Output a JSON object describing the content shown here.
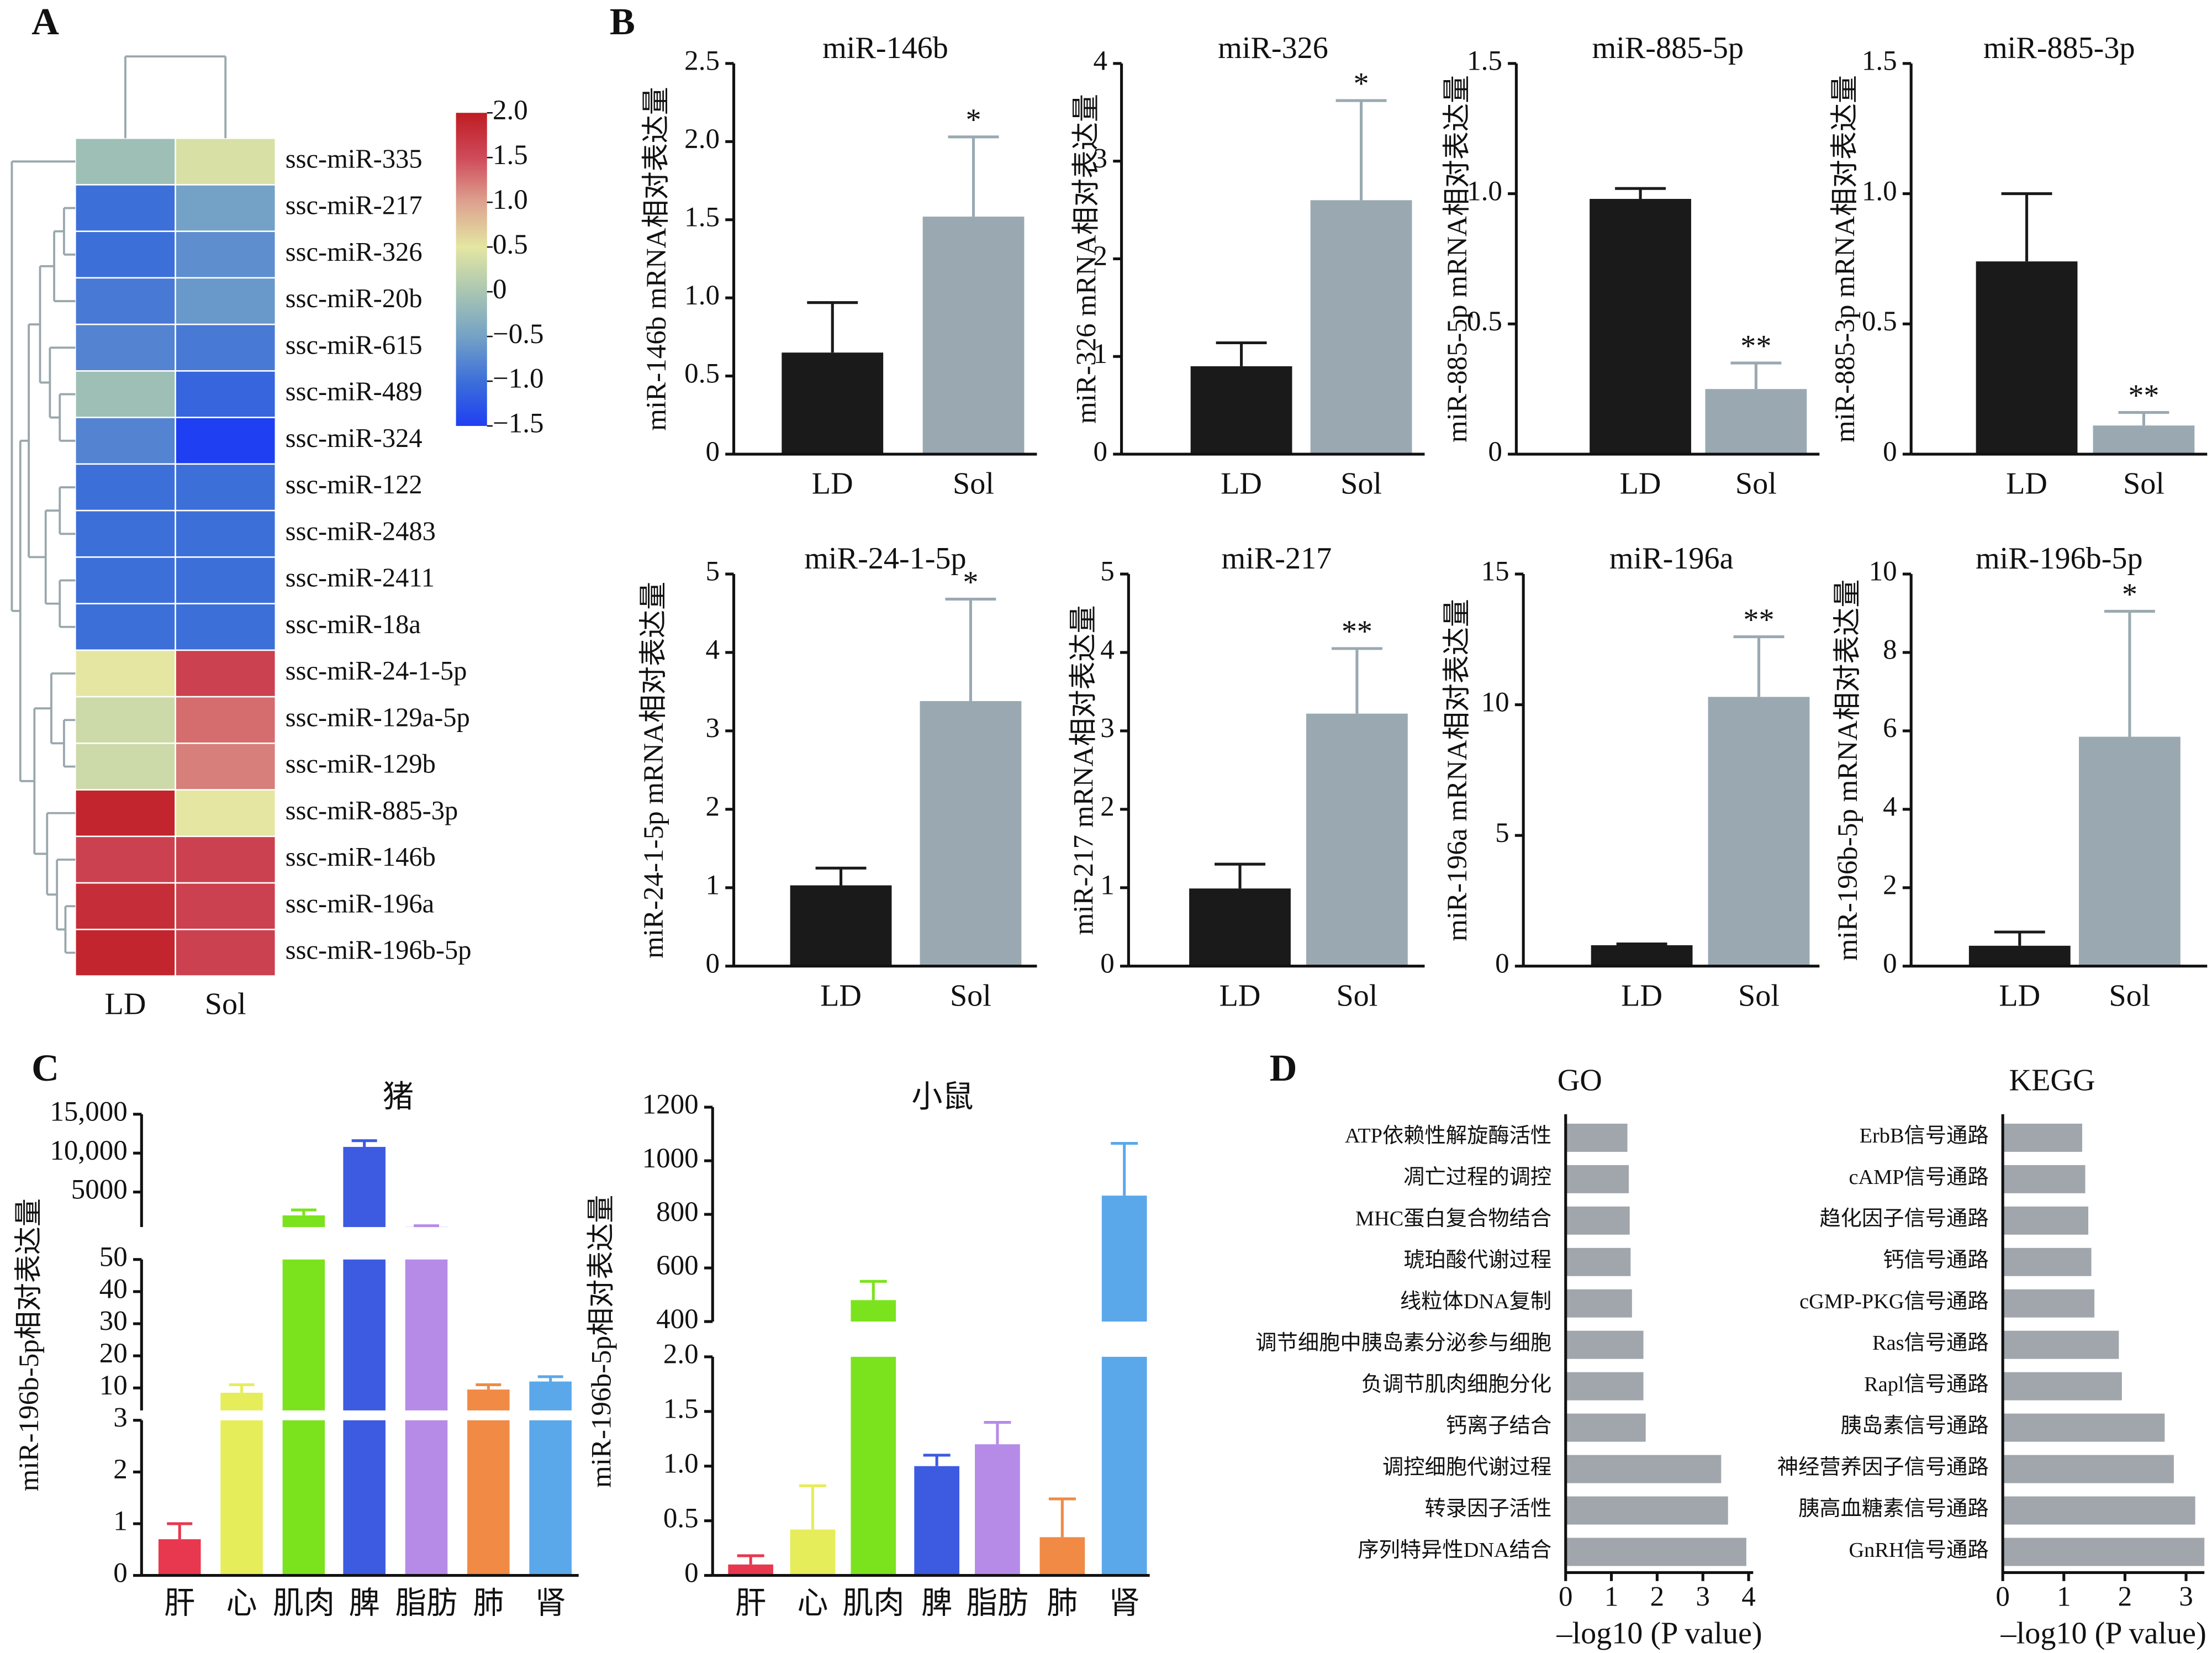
{
  "chart_data": [
    {
      "type": "heatmap",
      "panel": "A",
      "columns": [
        "LD",
        "Sol"
      ],
      "rows": [
        "ssc-miR-335",
        "ssc-miR-217",
        "ssc-miR-326",
        "ssc-miR-20b",
        "ssc-miR-615",
        "ssc-miR-489",
        "ssc-miR-324",
        "ssc-miR-122",
        "ssc-miR-2483",
        "ssc-miR-2411",
        "ssc-miR-18a",
        "ssc-miR-24-1-5p",
        "ssc-miR-129a-5p",
        "ssc-miR-129b",
        "ssc-miR-885-3p",
        "ssc-miR-146b",
        "ssc-miR-196a",
        "ssc-miR-196b-5p"
      ],
      "values": [
        [
          -0.1,
          0.4
        ],
        [
          -1.0,
          -0.5
        ],
        [
          -1.0,
          -0.7
        ],
        [
          -0.9,
          -0.6
        ],
        [
          -0.8,
          -0.9
        ],
        [
          -0.1,
          -1.1
        ],
        [
          -0.8,
          -1.5
        ],
        [
          -1.0,
          -1.0
        ],
        [
          -1.0,
          -1.0
        ],
        [
          -1.0,
          -1.0
        ],
        [
          -1.0,
          -1.0
        ],
        [
          0.5,
          1.6
        ],
        [
          0.3,
          1.3
        ],
        [
          0.3,
          1.2
        ],
        [
          1.9,
          0.5
        ],
        [
          1.6,
          1.6
        ],
        [
          1.8,
          1.6
        ],
        [
          1.9,
          1.6
        ]
      ],
      "zlim": [
        -1.5,
        2
      ],
      "zticks": [
        {
          "value": 2,
          "label": "2.0"
        },
        1.5,
        {
          "value": 1,
          "label": "1.0"
        },
        0.5,
        0,
        {
          "value": -0.5,
          "label": "−0.5"
        },
        {
          "value": -1,
          "label": "−1.0"
        },
        {
          "value": -1.5,
          "label": "−1.5"
        }
      ],
      "colormap": [
        "#1f3ff2",
        "#3d6fd9",
        "#74a2c6",
        "#a9c6b2",
        "#e4e6a2",
        "#dda28f",
        "#cf4a5a",
        "#bf1c22"
      ]
    },
    {
      "type": "bar",
      "panel": "B",
      "title": "miR-146b",
      "ylabel": "miR-146b mRNA相对表达量",
      "categories": [
        "LD",
        "Sol"
      ],
      "values": [
        0.65,
        1.52
      ],
      "errors": [
        0.32,
        0.51
      ],
      "significance": [
        null,
        "*"
      ],
      "colors": [
        "#1a1a1a",
        "#9aa9b1"
      ],
      "ylim": [
        0,
        2.5
      ],
      "yticks": [
        0,
        0.5,
        {
          "value": 1,
          "label": "1.0"
        },
        1.5,
        {
          "value": 2,
          "label": "2.0"
        },
        2.5
      ]
    },
    {
      "type": "bar",
      "title": "miR-326",
      "ylabel": "miR-326 mRNA相对表达量",
      "categories": [
        "LD",
        "Sol"
      ],
      "values": [
        0.9,
        2.6
      ],
      "errors": [
        0.24,
        1.02
      ],
      "significance": [
        null,
        "*"
      ],
      "colors": [
        "#1a1a1a",
        "#9aa9b1"
      ],
      "ylim": [
        0,
        4
      ],
      "yticks": [
        0,
        1,
        2,
        3,
        4
      ]
    },
    {
      "type": "bar",
      "title": "miR-885-5p",
      "ylabel": "miR-885-5p mRNA相对表达量",
      "categories": [
        "LD",
        "Sol"
      ],
      "values": [
        0.98,
        0.25
      ],
      "errors": [
        0.04,
        0.1
      ],
      "significance": [
        null,
        "**"
      ],
      "colors": [
        "#1a1a1a",
        "#9aa9b1"
      ],
      "ylim": [
        0,
        1.5
      ],
      "yticks": [
        0,
        0.5,
        {
          "value": 1,
          "label": "1.0"
        },
        1.5
      ]
    },
    {
      "type": "bar",
      "title": "miR-885-3p",
      "ylabel": "miR-885-3p mRNA相对表达量",
      "categories": [
        "LD",
        "Sol"
      ],
      "values": [
        0.74,
        0.11
      ],
      "errors": [
        0.26,
        0.05
      ],
      "significance": [
        null,
        "**"
      ],
      "colors": [
        "#1a1a1a",
        "#9aa9b1"
      ],
      "ylim": [
        0,
        1.5
      ],
      "yticks": [
        0,
        0.5,
        {
          "value": 1,
          "label": "1.0"
        },
        1.5
      ]
    },
    {
      "type": "bar",
      "title": "miR-24-1-5p",
      "ylabel": "miR-24-1-5p mRNA相对表达量",
      "categories": [
        "LD",
        "Sol"
      ],
      "values": [
        1.03,
        3.38
      ],
      "errors": [
        0.22,
        1.3
      ],
      "significance": [
        null,
        "*"
      ],
      "colors": [
        "#1a1a1a",
        "#9aa9b1"
      ],
      "ylim": [
        0,
        5
      ],
      "yticks": [
        0,
        1,
        2,
        3,
        4,
        5
      ]
    },
    {
      "type": "bar",
      "title": "miR-217",
      "ylabel": "miR-217 mRNA相对表达量",
      "categories": [
        "LD",
        "Sol"
      ],
      "values": [
        0.99,
        3.22
      ],
      "errors": [
        0.31,
        0.83
      ],
      "significance": [
        null,
        "**"
      ],
      "colors": [
        "#1a1a1a",
        "#9aa9b1"
      ],
      "ylim": [
        0,
        5
      ],
      "yticks": [
        0,
        1,
        2,
        3,
        4,
        5
      ]
    },
    {
      "type": "bar",
      "title": "miR-196a",
      "ylabel": "miR-196a mRNA相对表达量",
      "categories": [
        "LD",
        "Sol"
      ],
      "values": [
        0.8,
        10.3
      ],
      "errors": [
        0.05,
        2.3
      ],
      "significance": [
        null,
        "**"
      ],
      "colors": [
        "#1a1a1a",
        "#9aa9b1"
      ],
      "ylim": [
        0,
        15
      ],
      "yticks": [
        0,
        5,
        10,
        15
      ]
    },
    {
      "type": "bar",
      "title": "miR-196b-5p",
      "ylabel": "miR-196b-5p mRNA相对表达量",
      "categories": [
        "LD",
        "Sol"
      ],
      "values": [
        0.52,
        5.85
      ],
      "errors": [
        0.35,
        3.2
      ],
      "significance": [
        null,
        "*"
      ],
      "colors": [
        "#1a1a1a",
        "#9aa9b1"
      ],
      "ylim": [
        0,
        10
      ],
      "yticks": [
        0,
        2,
        4,
        6,
        8,
        10
      ]
    },
    {
      "type": "broken_bar",
      "panel": "C",
      "title": "猪",
      "ylabel": "miR-196b-5p相对表达量",
      "categories": [
        "肝",
        "心",
        "肌肉",
        "脾",
        "脂肪",
        "肺",
        "肾"
      ],
      "values": [
        0.7,
        8.5,
        2000,
        10800,
        520,
        9.5,
        12
      ],
      "errors": [
        0.3,
        2.5,
        700,
        800,
        150,
        1.5,
        1.5
      ],
      "colors": [
        "#e8384f",
        "#e6ed5a",
        "#7be31e",
        "#3d5be0",
        "#b68be8",
        "#f08a45",
        "#5aa8ea"
      ],
      "segments": [
        {
          "ylim": [
            0,
            3
          ],
          "yticks": [
            0,
            1,
            2,
            3
          ]
        },
        {
          "ylim": [
            3,
            50
          ],
          "yticks": [
            10,
            20,
            30,
            40,
            50
          ]
        },
        {
          "ylim": [
            500,
            15000
          ],
          "yticks": [
            5000,
            {
              "value": 10000,
              "label": "10,000"
            },
            {
              "value": 15000,
              "label": "15,000"
            }
          ]
        }
      ]
    },
    {
      "type": "broken_bar",
      "title": "小鼠",
      "ylabel": "miR-196b-5p相对表达量",
      "categories": [
        "肝",
        "心",
        "肌肉",
        "脾",
        "脂肪",
        "肺",
        "肾"
      ],
      "values": [
        0.1,
        0.42,
        480,
        1.0,
        1.2,
        0.35,
        870
      ],
      "errors": [
        0.08,
        0.4,
        70,
        0.1,
        0.2,
        0.35,
        195
      ],
      "colors": [
        "#e8384f",
        "#e6ed5a",
        "#7be31e",
        "#3d5be0",
        "#b68be8",
        "#f08a45",
        "#5aa8ea"
      ],
      "segments": [
        {
          "ylim": [
            0,
            2
          ],
          "yticks": [
            0,
            0.5,
            {
              "value": 1,
              "label": "1.0"
            },
            1.5,
            {
              "value": 2,
              "label": "2.0"
            }
          ]
        },
        {
          "ylim": [
            400,
            1200
          ],
          "yticks": [
            400,
            600,
            800,
            1000,
            1200
          ]
        }
      ]
    },
    {
      "type": "hbar",
      "panel": "D",
      "title": "GO",
      "xlabel": "–log10 (P value)",
      "categories": [
        "ATP依赖性解旋酶活性",
        "凋亡过程的调控",
        "MHC蛋白复合物结合",
        "琥珀酸代谢过程",
        "线粒体DNA复制",
        "调节细胞中胰岛素分泌参与细胞",
        "负调节肌肉细胞分化",
        "钙离子结合",
        "调控细胞代谢过程",
        "转录因子活性",
        "序列特异性DNA结合"
      ],
      "values": [
        1.35,
        1.38,
        1.4,
        1.42,
        1.45,
        1.7,
        1.7,
        1.75,
        3.4,
        3.55,
        3.95
      ],
      "color": "#a0a6ab",
      "xlim": [
        0,
        4.1
      ],
      "xticks": [
        0,
        1,
        2,
        3,
        4
      ]
    },
    {
      "type": "hbar",
      "title": "KEGG",
      "xlabel": "–log10 (P value)",
      "categories": [
        "ErbB信号通路",
        "cAMP信号通路",
        "趋化因子信号通路",
        "钙信号通路",
        "cGMP-PKG信号通路",
        "Ras信号通路",
        "Rapl信号通路",
        "胰岛素信号通路",
        "神经营养因子信号通路",
        "胰高血糖素信号通路",
        "GnRH信号通路"
      ],
      "values": [
        1.3,
        1.35,
        1.4,
        1.45,
        1.5,
        1.9,
        1.95,
        2.65,
        2.8,
        3.15,
        3.3
      ],
      "color": "#a0a6ab",
      "xlim": [
        0,
        3.3
      ],
      "xticks": [
        0,
        1,
        2,
        3
      ]
    }
  ]
}
